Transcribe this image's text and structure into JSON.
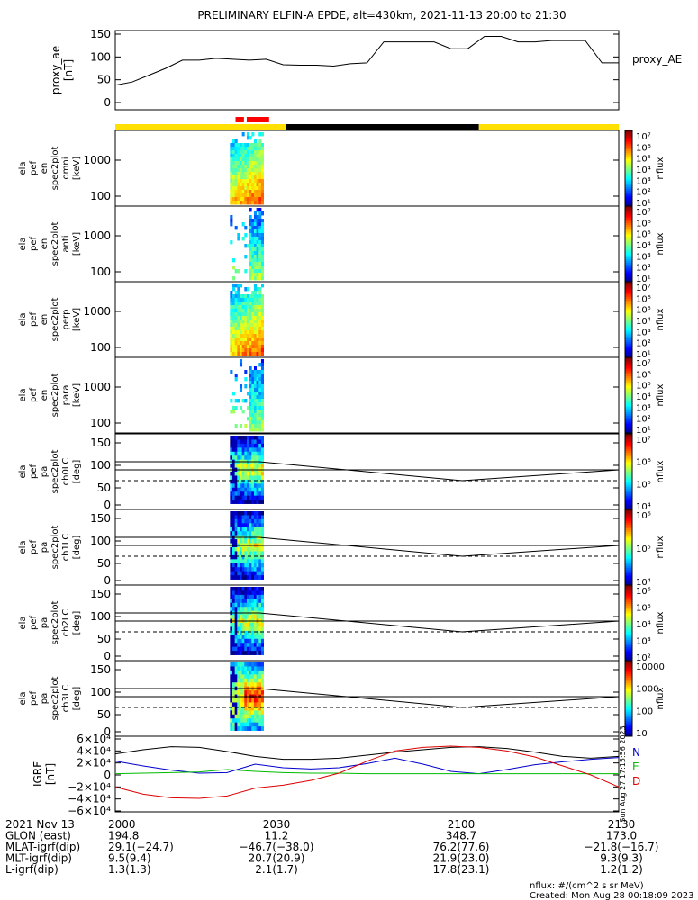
{
  "title": "PRELIMINARY ELFIN-A EPDE, alt=430km, 2021-11-13 20:00 to 21:30",
  "chart_data": [
    {
      "type": "line",
      "name": "proxy_ae",
      "ylabel": [
        "proxy_ae",
        "[nT]"
      ],
      "legend": "proxy_AE",
      "ylim": [
        0,
        150
      ],
      "yticks": [
        "150",
        "100",
        "50",
        "0"
      ],
      "x_minutes": [
        0,
        3,
        6,
        9,
        12,
        15,
        18,
        21,
        24,
        27,
        30,
        33,
        36,
        39,
        42,
        45,
        48,
        51,
        54,
        57,
        60,
        63,
        66,
        69,
        72,
        75,
        78,
        81,
        84,
        87,
        90
      ],
      "values": [
        38,
        45,
        60,
        75,
        93,
        93,
        97,
        95,
        93,
        95,
        83,
        82,
        82,
        80,
        85,
        87,
        133,
        133,
        133,
        133,
        118,
        118,
        145,
        145,
        133,
        133,
        136,
        136,
        136,
        87,
        87
      ]
    },
    {
      "type": "bar",
      "name": "coverage-bar",
      "segments": [
        {
          "from": 0,
          "to": 30.5,
          "color": "#ffe000"
        },
        {
          "from": 30.5,
          "to": 65,
          "color": "#000000"
        },
        {
          "from": 65,
          "to": 90,
          "color": "#ffe000"
        }
      ],
      "marks": [
        {
          "from": 21.5,
          "to": 23,
          "color": "#ff0000"
        },
        {
          "from": 23.5,
          "to": 27.5,
          "color": "#ff0000"
        }
      ]
    },
    {
      "type": "heatmap",
      "name": "ela_pef_en_spec2plot_omni",
      "ylabel": [
        "ela",
        "pef",
        "en",
        "spec2plot",
        "omni",
        "[keV]"
      ],
      "yticks": [
        "1000",
        "100"
      ],
      "colorbar": {
        "label": "nflux",
        "ticks": [
          "10⁷",
          "10⁶",
          "10⁵",
          "10⁴",
          "10³",
          "10²",
          "10¹"
        ]
      }
    },
    {
      "type": "heatmap",
      "name": "ela_pef_en_spec2plot_anti",
      "ylabel": [
        "ela",
        "pef",
        "en",
        "spec2plot",
        "anti",
        "[keV]"
      ],
      "yticks": [
        "1000",
        "100"
      ],
      "colorbar": {
        "label": "nflux",
        "ticks": [
          "10⁷",
          "10⁶",
          "10⁵",
          "10⁴",
          "10³",
          "10²",
          "10¹"
        ]
      }
    },
    {
      "type": "heatmap",
      "name": "ela_pef_en_spec2plot_perp",
      "ylabel": [
        "ela",
        "pef",
        "en",
        "spec2plot",
        "perp",
        "[keV]"
      ],
      "yticks": [
        "1000",
        "100"
      ],
      "colorbar": {
        "label": "nflux",
        "ticks": [
          "10⁷",
          "10⁶",
          "10⁵",
          "10⁴",
          "10³",
          "10²",
          "10¹"
        ]
      }
    },
    {
      "type": "heatmap",
      "name": "ela_pef_en_spec2plot_para",
      "ylabel": [
        "ela",
        "pef",
        "en",
        "spec2plot",
        "para",
        "[keV]"
      ],
      "yticks": [
        "1000",
        "100"
      ],
      "colorbar": {
        "label": "nflux",
        "ticks": [
          "10⁷",
          "10⁶",
          "10⁵",
          "10⁴",
          "10³",
          "10²",
          "10¹"
        ]
      }
    },
    {
      "type": "heatmap",
      "name": "ela_pef_pa_spec2plot_ch0LC",
      "ylabel": [
        "ela",
        "pef",
        "pa",
        "spec2plot",
        "ch0LC",
        "[deg]"
      ],
      "yticks": [
        "150",
        "100",
        "50",
        "0"
      ],
      "colorbar": {
        "label": "nflux",
        "ticks": [
          "10⁷",
          "10⁶",
          "10⁵",
          "10⁴"
        ]
      }
    },
    {
      "type": "heatmap",
      "name": "ela_pef_pa_spec2plot_ch1LC",
      "ylabel": [
        "ela",
        "pef",
        "pa",
        "spec2plot",
        "ch1LC",
        "[deg]"
      ],
      "yticks": [
        "150",
        "100",
        "50",
        "0"
      ],
      "colorbar": {
        "label": "nflux",
        "ticks": [
          "10⁶",
          "10⁵",
          "10⁴"
        ]
      }
    },
    {
      "type": "heatmap",
      "name": "ela_pef_pa_spec2plot_ch2LC",
      "ylabel": [
        "ela",
        "pef",
        "pa",
        "spec2plot",
        "ch2LC",
        "[deg]"
      ],
      "yticks": [
        "150",
        "100",
        "50",
        "0"
      ],
      "colorbar": {
        "label": "nflux",
        "ticks": [
          "10⁶",
          "10⁵",
          "10⁴",
          "10³",
          "10²"
        ]
      }
    },
    {
      "type": "heatmap",
      "name": "ela_pef_pa_spec2plot_ch3LC",
      "ylabel": [
        "ela",
        "pef",
        "pa",
        "spec2plot",
        "ch3LC",
        "[deg]"
      ],
      "yticks": [
        "150",
        "100",
        "50",
        "0"
      ],
      "colorbar": {
        "label": "nflux",
        "ticks": [
          "10000",
          "1000",
          "100",
          "10"
        ]
      }
    },
    {
      "type": "line",
      "name": "IGRF",
      "ylabel": [
        "IGRF",
        "[nT]"
      ],
      "ylim": [
        -60000,
        60000
      ],
      "yticks": [
        "6×10⁴",
        "4×10⁴",
        "2×10⁴",
        "0",
        "−2×10⁴",
        "−4×10⁴",
        "−6×10⁴"
      ],
      "legend": [
        "N",
        "E",
        "D"
      ],
      "x_minutes": [
        0,
        5,
        10,
        15,
        20,
        25,
        30,
        35,
        40,
        45,
        50,
        55,
        60,
        65,
        70,
        75,
        80,
        85,
        90
      ],
      "series": [
        {
          "name": "black",
          "color": "#000000",
          "values": [
            35000,
            42000,
            47000,
            46000,
            39000,
            31000,
            26000,
            26000,
            28000,
            33000,
            38000,
            42000,
            46000,
            47000,
            44000,
            38000,
            31000,
            28000,
            31000
          ]
        },
        {
          "name": "N",
          "color": "#0000cc",
          "values": [
            23000,
            15000,
            8000,
            3000,
            4000,
            18000,
            12000,
            10000,
            12000,
            19000,
            28000,
            18000,
            6000,
            2000,
            9000,
            17000,
            22000,
            26000,
            29000
          ]
        },
        {
          "name": "E",
          "color": "#00bb00",
          "values": [
            2000,
            3000,
            4000,
            5000,
            9000,
            6000,
            4000,
            3000,
            3000,
            2000,
            2000,
            2000,
            2000,
            2000,
            2000,
            2000,
            2000,
            2000,
            2000
          ]
        },
        {
          "name": "D",
          "color": "#dd0000",
          "values": [
            -20000,
            -32000,
            -38000,
            -39000,
            -35000,
            -22000,
            -17000,
            -9000,
            3000,
            23000,
            40000,
            46000,
            48000,
            46000,
            40000,
            30000,
            15000,
            0,
            -20000
          ]
        }
      ],
      "vertical_annotation": "Sun Aug 27 17:15:56 2023"
    }
  ],
  "footer": {
    "label_col": [
      "2021 Nov 13",
      "GLON (east)",
      "MLAT-igrf(dip)",
      "MLT-igrf(dip)",
      "L-igrf(dip)"
    ],
    "columns": [
      [
        "2000",
        "194.8",
        "29.1(−24.7)",
        "9.5(9.4)",
        "1.3(1.3)"
      ],
      [
        "2030",
        "11.2",
        "−46.7(−38.0)",
        "20.7(20.9)",
        "2.1(1.7)"
      ],
      [
        "2100",
        "348.7",
        "76.2(77.6)",
        "21.9(23.0)",
        "17.8(23.1)"
      ],
      [
        "2130",
        "173.0",
        "−21.8(−16.7)",
        "9.3(9.3)",
        "1.2(1.2)"
      ]
    ],
    "units_note": "nflux: #/(cm^2 s sr MeV)",
    "created": "Created: Mon Aug 28 00:18:09 2023"
  },
  "colors": {
    "frame": "#000000",
    "yellow": "#ffe000",
    "red": "#ff0000"
  }
}
